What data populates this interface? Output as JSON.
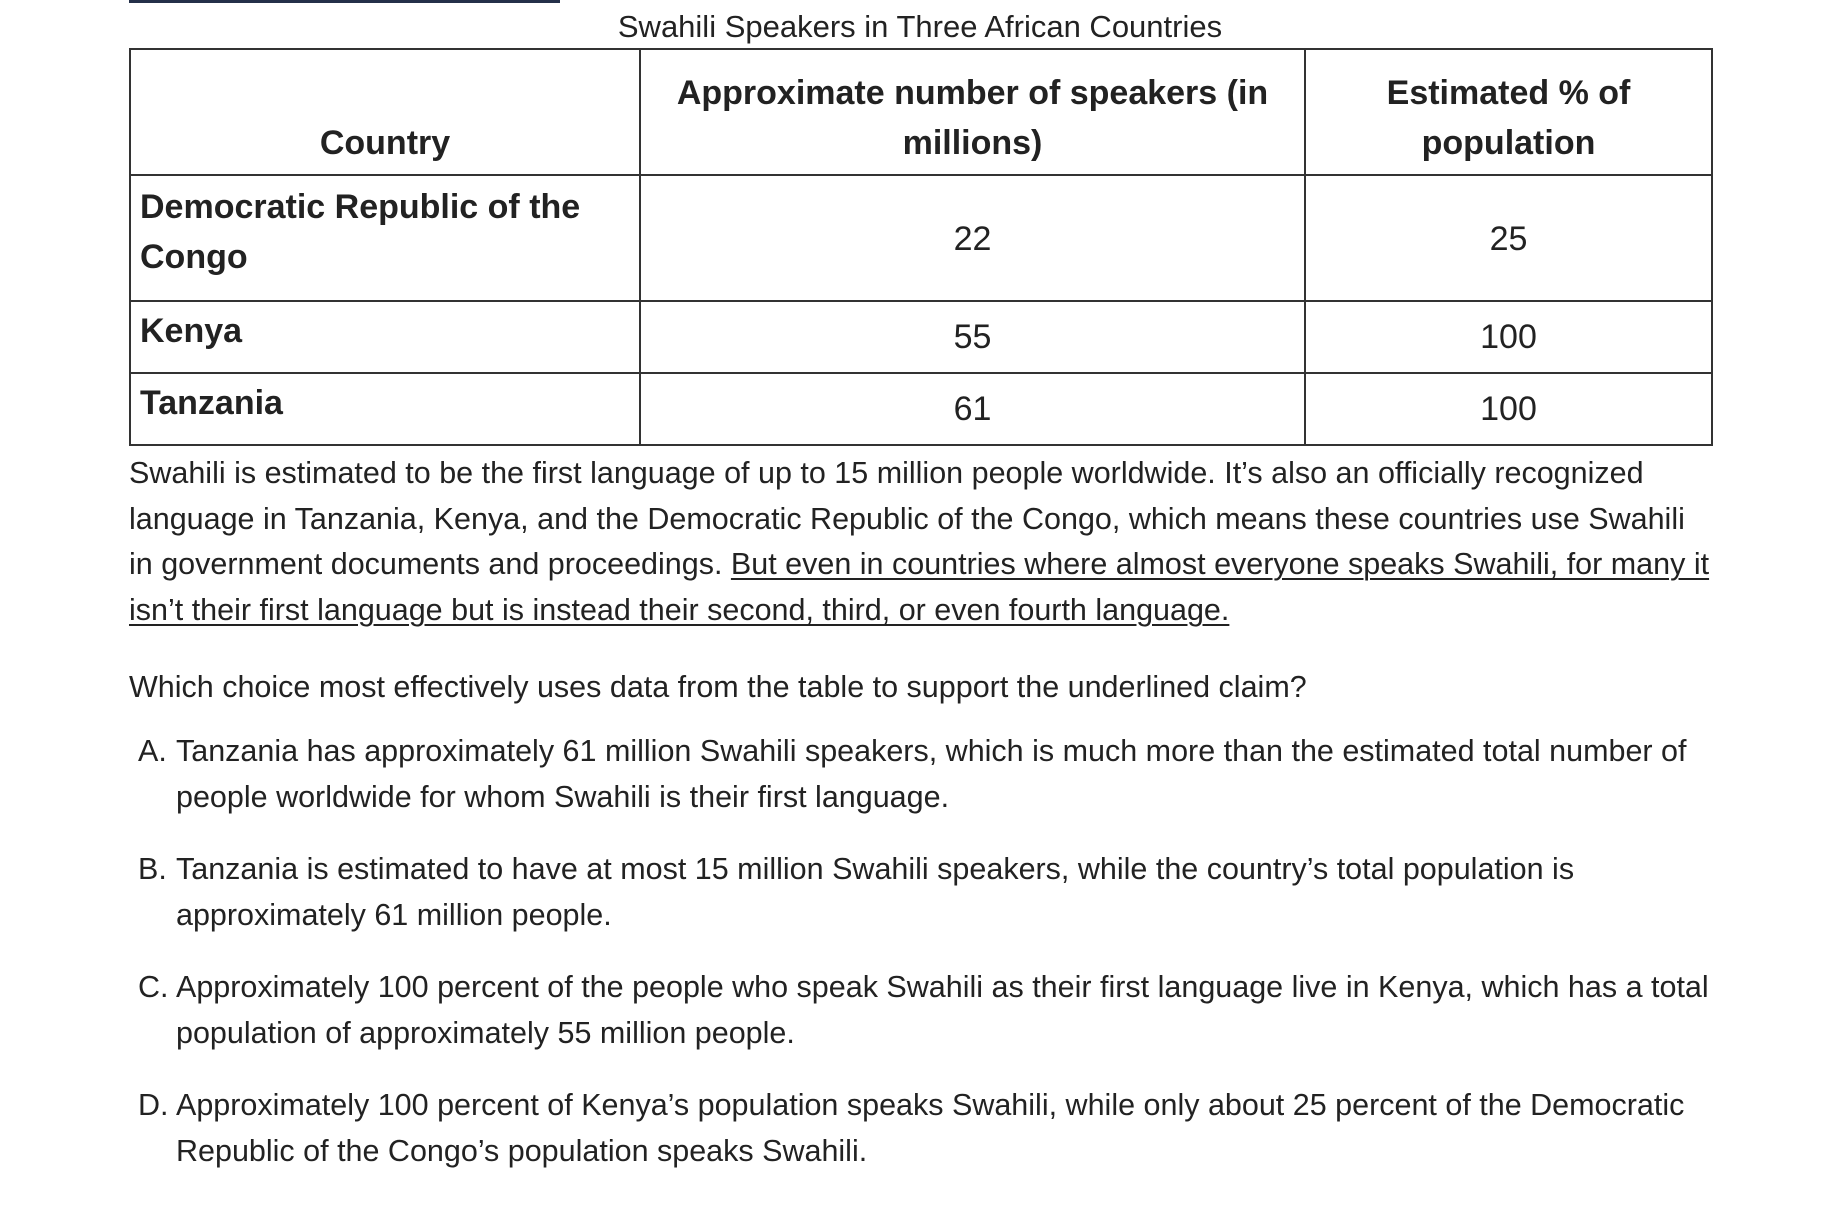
{
  "table": {
    "caption": "Swahili Speakers in Three African Countries",
    "headers": [
      "Country",
      "Approximate number of speakers (in millions)",
      "Estimated % of population"
    ],
    "rows": [
      {
        "country": "Democratic Republic of the Congo",
        "speakers_millions": "22",
        "percent_population": "25"
      },
      {
        "country": "Kenya",
        "speakers_millions": "55",
        "percent_population": "100"
      },
      {
        "country": "Tanzania",
        "speakers_millions": "61",
        "percent_population": "100"
      }
    ]
  },
  "passage": {
    "text_plain": "Swahili is estimated to be the first language of up to 15 million people worldwide. It’s also an officially recognized language in Tanzania, Kenya, and the Democratic Republic of the Congo, which means these countries use Swahili in government documents and proceedings. ",
    "text_underlined": "But even in countries where almost everyone speaks Swahili, for many it isn’t their first language but is instead their second, third, or even fourth language."
  },
  "question": "Which choice most effectively uses data from the table to support the underlined claim?",
  "choices": [
    {
      "letter": "A.",
      "text": "Tanzania has approximately 61 million Swahili speakers, which is much more than the estimated total number of people worldwide for whom Swahili is their first language."
    },
    {
      "letter": "B.",
      "text": "Tanzania is estimated to have at most 15 million Swahili speakers, while the country’s total population is approximately 61 million people."
    },
    {
      "letter": "C.",
      "text": "Approximately 100 percent of the people who speak Swahili as their first language live in Kenya, which has a total population of approximately 55 million people."
    },
    {
      "letter": "D.",
      "text": "Approximately 100 percent of Kenya’s population speaks Swahili, while only about 25 percent of the Democratic Republic of the Congo’s population speaks Swahili."
    }
  ],
  "colors": {
    "text": "#222222",
    "table_border": "#333333",
    "top_rule": "#243049",
    "background": "#ffffff"
  }
}
